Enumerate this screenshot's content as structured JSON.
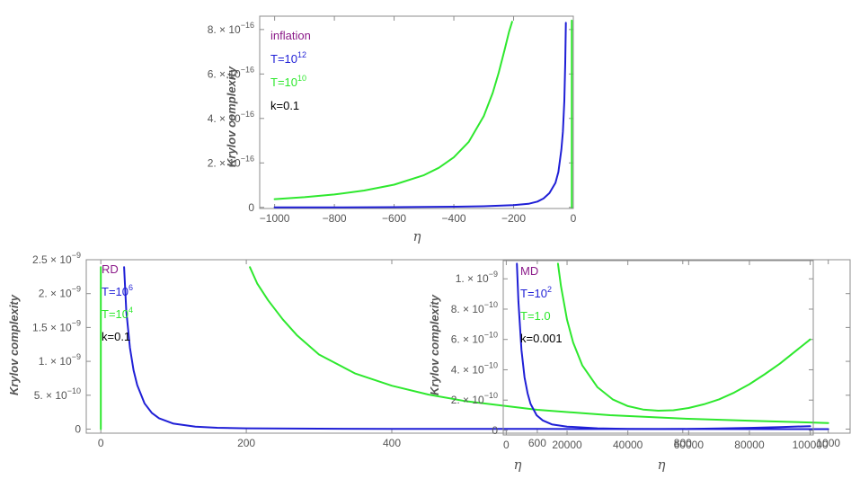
{
  "chart_data": [
    {
      "type": "line",
      "id": "inflation",
      "ylabel": "Krylov complexity",
      "xlabel": "η",
      "xlim": [
        -1050,
        0
      ],
      "ylim": [
        -5e-18,
        8.6e-16
      ],
      "xticks": [
        -1000,
        -800,
        -600,
        -400,
        -200,
        0
      ],
      "xticklabels": [
        "−1000",
        "−800",
        "−600",
        "−400",
        "−200",
        "0"
      ],
      "yticks": [
        0,
        2e-16,
        4e-16,
        6e-16,
        8e-16
      ],
      "yticklabels": [
        {
          "mant": "0"
        },
        {
          "mant": "2. × 10",
          "exp": "−16"
        },
        {
          "mant": "4. × 10",
          "exp": "−16"
        },
        {
          "mant": "6. × 10",
          "exp": "−16"
        },
        {
          "mant": "8. × 10",
          "exp": "−16"
        }
      ],
      "legend": [
        {
          "text": "inflation",
          "color": "#8b1a89"
        },
        {
          "text": "T=10",
          "sup": "12",
          "color": "#1f1fd6"
        },
        {
          "text": "T=10",
          "sup": "10",
          "color": "#2ee82e"
        },
        {
          "text": "k=0.1",
          "color": "#000000"
        }
      ],
      "series": [
        {
          "name": "T=10^12",
          "color": "#1f1fd6",
          "x": [
            -1000,
            -800,
            -600,
            -400,
            -300,
            -200,
            -150,
            -120,
            -100,
            -80,
            -60,
            -50,
            -40,
            -35,
            -30,
            -27,
            -25
          ],
          "y": [
            0,
            0,
            1e-18,
            3e-18,
            5e-18,
            1e-17,
            1.6e-17,
            2.6e-17,
            4e-17,
            6.4e-17,
            1.1e-16,
            1.6e-16,
            2.6e-16,
            3.4e-16,
            4.8e-16,
            6.5e-16,
            8.3e-16
          ]
        },
        {
          "name": "T=10^10",
          "color": "#2ee82e",
          "x": [
            -1000,
            -900,
            -800,
            -700,
            -600,
            -500,
            -450,
            -400,
            -350,
            -300,
            -270,
            -250,
            -230,
            -215,
            -205
          ],
          "y": [
            3.7e-17,
            4.6e-17,
            5.8e-17,
            7.6e-17,
            1.02e-16,
            1.45e-16,
            1.78e-16,
            2.25e-16,
            2.95e-16,
            4.1e-16,
            5.15e-16,
            6.05e-16,
            7.1e-16,
            7.9e-16,
            8.35e-16
          ]
        },
        {
          "name": "T=10^10 (vertical)",
          "color": "#2ee82e",
          "x": [
            -5,
            -5
          ],
          "y": [
            0,
            8.4e-16
          ]
        }
      ]
    },
    {
      "type": "line",
      "id": "RD",
      "ylabel": "Krylov complexity",
      "xlabel": "η",
      "xlim": [
        -20,
        1030
      ],
      "ylim": [
        -6e-11,
        2.5e-09
      ],
      "xticks": [
        0,
        200,
        400,
        600,
        800,
        1000
      ],
      "xticklabels": [
        "0",
        "200",
        "400",
        "600",
        "800",
        "1000"
      ],
      "yticks": [
        0,
        5e-10,
        1e-09,
        1.5e-09,
        2e-09,
        2.5e-09
      ],
      "yticklabels": [
        {
          "mant": "0"
        },
        {
          "mant": "5. × 10",
          "exp": "−10"
        },
        {
          "mant": "1. × 10",
          "exp": "−9"
        },
        {
          "mant": "1.5 × 10",
          "exp": "−9"
        },
        {
          "mant": "2. × 10",
          "exp": "−9"
        },
        {
          "mant": "2.5 × 10",
          "exp": "−9"
        }
      ],
      "legend": [
        {
          "text": "RD",
          "color": "#8b1a89"
        },
        {
          "text": "T=10",
          "sup": "6",
          "color": "#1f1fd6"
        },
        {
          "text": "T=10",
          "sup": "4",
          "color": "#2ee82e"
        },
        {
          "text": "k=0.1",
          "color": "#000000"
        }
      ],
      "series": [
        {
          "name": "T=10^6",
          "color": "#1f1fd6",
          "x": [
            32,
            35,
            40,
            45,
            50,
            60,
            70,
            80,
            100,
            130,
            160,
            200,
            300,
            400,
            600,
            800,
            1000
          ],
          "y": [
            2.39e-09,
            1.75e-09,
            1.2e-09,
            8.7e-10,
            6.5e-10,
            3.8e-10,
            2.4e-10,
            1.6e-10,
            8e-11,
            3.6e-11,
            2e-11,
            1.2e-11,
            6e-12,
            4e-12,
            2e-12,
            1e-12,
            0
          ]
        },
        {
          "name": "T=10^4",
          "color": "#2ee82e",
          "x": [
            205,
            215,
            230,
            250,
            270,
            300,
            350,
            400,
            450,
            500,
            600,
            700,
            800,
            900,
            1000
          ],
          "y": [
            2.39e-09,
            2.15e-09,
            1.9e-09,
            1.62e-09,
            1.38e-09,
            1.1e-09,
            8.2e-10,
            6.4e-10,
            5.1e-10,
            4.15e-10,
            2.85e-10,
            2.05e-10,
            1.55e-10,
            1.2e-10,
            9e-11
          ]
        },
        {
          "name": "T=10^4 (vertical)",
          "color": "#2ee82e",
          "x": [
            0,
            0
          ],
          "y": [
            0,
            2.39e-09
          ]
        }
      ]
    },
    {
      "type": "line",
      "id": "MD",
      "ylabel": "Krylov complexity",
      "xlabel": "η",
      "xlim": [
        -1000,
        101000
      ],
      "ylim": [
        -3e-11,
        1.12e-09
      ],
      "xticks": [
        0,
        20000,
        40000,
        60000,
        80000,
        100000
      ],
      "xticklabels": [
        "0",
        "20000",
        "40000",
        "60000",
        "80000",
        "100000"
      ],
      "yticks": [
        0,
        2e-10,
        4e-10,
        6e-10,
        8e-10,
        1e-09
      ],
      "yticklabels": [
        {
          "mant": "0"
        },
        {
          "mant": "2. × 10",
          "exp": "−10"
        },
        {
          "mant": "4. × 10",
          "exp": "−10"
        },
        {
          "mant": "6. × 10",
          "exp": "−10"
        },
        {
          "mant": "8. × 10",
          "exp": "−10"
        },
        {
          "mant": "1. × 10",
          "exp": "−9"
        }
      ],
      "legend": [
        {
          "text": "MD",
          "color": "#8b1a89"
        },
        {
          "text": "T=10",
          "sup": "2",
          "color": "#1f1fd6"
        },
        {
          "text": "T=1.0",
          "color": "#2ee82e"
        },
        {
          "text": "k=0.001",
          "color": "#000000"
        }
      ],
      "series": [
        {
          "name": "T=10^2",
          "color": "#1f1fd6",
          "x": [
            3500,
            4000,
            5000,
            6000,
            7000,
            8000,
            10000,
            12000,
            15000,
            20000,
            30000,
            40000,
            50000,
            60000,
            70000,
            80000,
            90000,
            100000
          ],
          "y": [
            1.1e-09,
            8.5e-10,
            5.3e-10,
            3.5e-10,
            2.45e-10,
            1.75e-10,
            1e-10,
            6.6e-11,
            4e-11,
            2.5e-11,
            1.4e-11,
            1e-11,
            9e-12,
            1e-11,
            1.3e-11,
            1.7e-11,
            2.2e-11,
            2.8e-11
          ]
        },
        {
          "name": "T=1.0",
          "color": "#2ee82e",
          "x": [
            17000,
            18000,
            20000,
            22000,
            25000,
            30000,
            35000,
            40000,
            45000,
            50000,
            55000,
            60000,
            65000,
            70000,
            75000,
            80000,
            85000,
            90000,
            95000,
            100000
          ],
          "y": [
            1.1e-09,
            9.5e-10,
            7.3e-10,
            5.8e-10,
            4.3e-10,
            2.85e-10,
            2.05e-10,
            1.6e-10,
            1.38e-10,
            1.3e-10,
            1.33e-10,
            1.48e-10,
            1.72e-10,
            2.05e-10,
            2.5e-10,
            3.05e-10,
            3.7e-10,
            4.4e-10,
            5.2e-10,
            6e-10
          ]
        }
      ]
    }
  ]
}
